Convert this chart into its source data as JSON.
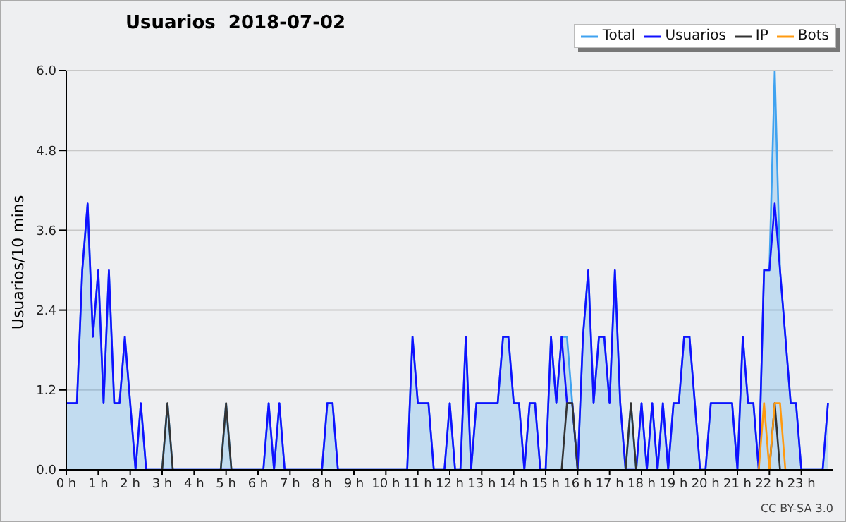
{
  "chart_data": {
    "type": "line",
    "title": "Usuarios  2018-07-02",
    "ylabel": "Usuarios/10 mins",
    "annotations": [
      "CC BY-SA 3.0"
    ],
    "x": [
      0,
      0.167,
      0.333,
      0.5,
      0.667,
      0.833,
      1,
      1.167,
      1.333,
      1.5,
      1.667,
      1.833,
      2,
      2.167,
      2.333,
      2.5,
      2.667,
      2.833,
      3,
      3.167,
      3.333,
      3.5,
      3.667,
      3.833,
      4,
      4.167,
      4.333,
      4.5,
      4.667,
      4.833,
      5,
      5.167,
      5.333,
      5.5,
      5.667,
      5.833,
      6,
      6.167,
      6.333,
      6.5,
      6.667,
      6.833,
      7,
      7.167,
      7.333,
      7.5,
      7.667,
      7.833,
      8,
      8.167,
      8.333,
      8.5,
      8.667,
      8.833,
      9,
      9.167,
      9.333,
      9.5,
      9.667,
      9.833,
      10,
      10.167,
      10.333,
      10.5,
      10.667,
      10.833,
      11,
      11.167,
      11.333,
      11.5,
      11.667,
      11.833,
      12,
      12.167,
      12.333,
      12.5,
      12.667,
      12.833,
      13,
      13.167,
      13.333,
      13.5,
      13.667,
      13.833,
      14,
      14.167,
      14.333,
      14.5,
      14.667,
      14.833,
      15,
      15.167,
      15.333,
      15.5,
      15.667,
      15.833,
      16,
      16.167,
      16.333,
      16.5,
      16.667,
      16.833,
      17,
      17.167,
      17.333,
      17.5,
      17.667,
      17.833,
      18,
      18.167,
      18.333,
      18.5,
      18.667,
      18.833,
      19,
      19.167,
      19.333,
      19.5,
      19.667,
      19.833,
      20,
      20.167,
      20.333,
      20.5,
      20.667,
      20.833,
      21,
      21.167,
      21.333,
      21.5,
      21.667,
      21.833,
      22,
      22.167,
      22.333,
      22.5,
      22.667,
      22.833,
      23,
      23.167,
      23.333,
      23.5,
      23.667,
      23.833
    ],
    "series": [
      {
        "name": "Total",
        "type": "area",
        "color": "#3fa2f0",
        "values": [
          1,
          1,
          1,
          3,
          4,
          2,
          3,
          1,
          3,
          1,
          1,
          2,
          1,
          0,
          1,
          0,
          0,
          0,
          0,
          1,
          0,
          0,
          0,
          0,
          0,
          0,
          0,
          0,
          0,
          0,
          1,
          0,
          0,
          0,
          0,
          0,
          0,
          0,
          1,
          0,
          1,
          0,
          0,
          0,
          0,
          0,
          0,
          0,
          0,
          1,
          1,
          0,
          0,
          0,
          0,
          0,
          0,
          0,
          0,
          0,
          0,
          0,
          0,
          0,
          0,
          2,
          1,
          1,
          1,
          0,
          0,
          0,
          1,
          0,
          0,
          2,
          0,
          1,
          1,
          1,
          1,
          1,
          2,
          2,
          1,
          1,
          0,
          1,
          1,
          0,
          0,
          2,
          1,
          2,
          2,
          1,
          0,
          2,
          3,
          1,
          2,
          2,
          1,
          3,
          1,
          0,
          1,
          0,
          1,
          0,
          1,
          0,
          1,
          0,
          1,
          1,
          2,
          2,
          1,
          0,
          0,
          1,
          1,
          1,
          1,
          1,
          0,
          2,
          1,
          1,
          0,
          3,
          3,
          6,
          3,
          2,
          1,
          1,
          0,
          0,
          0,
          0,
          0,
          1
        ]
      },
      {
        "name": "Usuarios",
        "color": "#1010ff",
        "values": [
          1,
          1,
          1,
          3,
          4,
          2,
          3,
          1,
          3,
          1,
          1,
          2,
          1,
          0,
          1,
          0,
          0,
          0,
          0,
          0,
          0,
          0,
          0,
          0,
          0,
          0,
          0,
          0,
          0,
          0,
          0,
          0,
          0,
          0,
          0,
          0,
          0,
          0,
          1,
          0,
          1,
          0,
          0,
          0,
          0,
          0,
          0,
          0,
          0,
          1,
          1,
          0,
          0,
          0,
          0,
          0,
          0,
          0,
          0,
          0,
          0,
          0,
          0,
          0,
          0,
          2,
          1,
          1,
          1,
          0,
          0,
          0,
          1,
          0,
          0,
          2,
          0,
          1,
          1,
          1,
          1,
          1,
          2,
          2,
          1,
          1,
          0,
          1,
          1,
          0,
          0,
          2,
          1,
          2,
          1,
          1,
          0,
          2,
          3,
          1,
          2,
          2,
          1,
          3,
          1,
          0,
          0,
          0,
          1,
          0,
          1,
          0,
          1,
          0,
          1,
          1,
          2,
          2,
          1,
          0,
          0,
          1,
          1,
          1,
          1,
          1,
          0,
          2,
          1,
          1,
          0,
          3,
          3,
          4,
          3,
          2,
          1,
          1,
          0,
          0,
          0,
          0,
          0,
          1
        ]
      },
      {
        "name": "IP",
        "color": "#333333",
        "values": [
          null,
          null,
          null,
          null,
          null,
          null,
          null,
          null,
          null,
          null,
          null,
          null,
          null,
          null,
          null,
          null,
          null,
          null,
          0,
          1,
          0,
          null,
          null,
          null,
          null,
          null,
          null,
          null,
          null,
          0,
          1,
          0,
          null,
          null,
          null,
          null,
          null,
          null,
          null,
          null,
          null,
          null,
          null,
          null,
          null,
          null,
          null,
          null,
          null,
          null,
          null,
          null,
          null,
          null,
          null,
          null,
          null,
          null,
          null,
          null,
          null,
          null,
          null,
          null,
          null,
          null,
          null,
          null,
          null,
          null,
          null,
          null,
          null,
          null,
          null,
          null,
          null,
          null,
          null,
          null,
          null,
          null,
          null,
          null,
          null,
          null,
          null,
          null,
          null,
          null,
          null,
          null,
          null,
          0,
          1,
          1,
          0,
          null,
          null,
          null,
          null,
          null,
          null,
          null,
          null,
          0,
          1,
          0,
          null,
          null,
          null,
          null,
          null,
          null,
          null,
          null,
          null,
          null,
          null,
          null,
          null,
          null,
          null,
          null,
          null,
          null,
          null,
          null,
          null,
          null,
          null,
          null,
          0,
          1,
          0,
          null,
          null,
          null,
          null,
          null,
          null,
          null,
          null,
          null
        ]
      },
      {
        "name": "Bots",
        "color": "#ff9a10",
        "values": [
          null,
          null,
          null,
          null,
          null,
          null,
          null,
          null,
          null,
          null,
          null,
          null,
          null,
          null,
          null,
          null,
          null,
          null,
          null,
          null,
          null,
          null,
          null,
          null,
          null,
          null,
          null,
          null,
          null,
          null,
          null,
          null,
          null,
          null,
          null,
          null,
          null,
          null,
          null,
          null,
          null,
          null,
          null,
          null,
          null,
          null,
          null,
          null,
          null,
          null,
          null,
          null,
          null,
          null,
          null,
          null,
          null,
          null,
          null,
          null,
          null,
          null,
          null,
          null,
          null,
          null,
          null,
          null,
          null,
          null,
          null,
          null,
          null,
          null,
          null,
          null,
          null,
          null,
          null,
          null,
          null,
          null,
          null,
          null,
          null,
          null,
          null,
          null,
          null,
          null,
          null,
          null,
          null,
          null,
          null,
          null,
          null,
          null,
          null,
          null,
          null,
          null,
          null,
          null,
          null,
          null,
          null,
          null,
          null,
          null,
          null,
          null,
          null,
          null,
          null,
          null,
          null,
          null,
          null,
          null,
          null,
          null,
          null,
          null,
          null,
          null,
          null,
          null,
          null,
          null,
          0,
          1,
          0,
          1,
          1,
          0,
          null,
          null,
          null,
          null,
          null,
          null,
          null,
          null
        ]
      }
    ],
    "xlim": [
      0,
      24
    ],
    "xticks": [
      {
        "value": 0,
        "label": "0 h"
      },
      {
        "value": 1,
        "label": "1 h"
      },
      {
        "value": 2,
        "label": "2 h"
      },
      {
        "value": 3,
        "label": "3 h"
      },
      {
        "value": 4,
        "label": "4 h"
      },
      {
        "value": 5,
        "label": "5 h"
      },
      {
        "value": 6,
        "label": "6 h"
      },
      {
        "value": 7,
        "label": "7 h"
      },
      {
        "value": 8,
        "label": "8 h"
      },
      {
        "value": 9,
        "label": "9 h"
      },
      {
        "value": 10,
        "label": "10 h"
      },
      {
        "value": 11,
        "label": "11 h"
      },
      {
        "value": 12,
        "label": "12 h"
      },
      {
        "value": 13,
        "label": "13 h"
      },
      {
        "value": 14,
        "label": "14 h"
      },
      {
        "value": 15,
        "label": "15 h"
      },
      {
        "value": 16,
        "label": "16 h"
      },
      {
        "value": 17,
        "label": "17 h"
      },
      {
        "value": 18,
        "label": "18 h"
      },
      {
        "value": 19,
        "label": "19 h"
      },
      {
        "value": 20,
        "label": "20 h"
      },
      {
        "value": 21,
        "label": "21 h"
      },
      {
        "value": 22,
        "label": "22 h"
      },
      {
        "value": 23,
        "label": "23 h"
      }
    ],
    "ylim": [
      0,
      6
    ],
    "yticks": [
      {
        "value": 0,
        "label": "0.0"
      },
      1.2,
      2.4,
      3.6,
      4.8,
      {
        "value": 6,
        "label": "6.0"
      }
    ],
    "grid": "y",
    "legend": "top right",
    "marker": "none",
    "line_style": "solid"
  }
}
